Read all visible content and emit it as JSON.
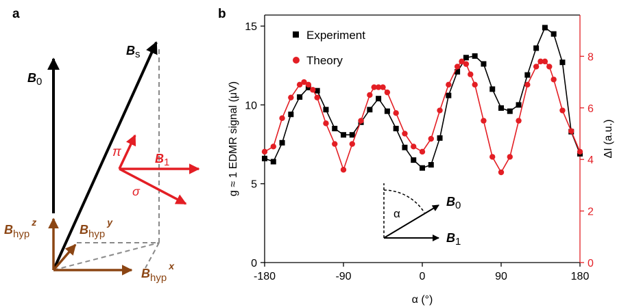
{
  "panel_a": {
    "label": "a",
    "vectors": {
      "B0": {
        "main": "B",
        "sub": "0"
      },
      "Bs": {
        "main": "B",
        "sub": "s"
      },
      "B1": {
        "main": "B",
        "sub": "1"
      },
      "pi": "π",
      "sigma": "σ",
      "Bhyp_z": {
        "main": "B",
        "sub": "hyp",
        "sup": "z"
      },
      "Bhyp_y": {
        "main": "B",
        "sub": "hyp",
        "sup": "y"
      },
      "Bhyp_x": {
        "main": "B",
        "sub": "hyp",
        "sup": "x"
      }
    },
    "colors": {
      "black": "#000000",
      "red": "#e31e24",
      "brown": "#8b4513",
      "dashed": "#888888"
    }
  },
  "panel_b": {
    "label": "b",
    "inset": {
      "alpha": "α",
      "B0": {
        "main": "B",
        "sub": "0"
      },
      "B1": {
        "main": "B",
        "sub": "1"
      }
    }
  },
  "chart_data": {
    "type": "line",
    "xlabel": "α (°)",
    "ylabel": "g ≈ 1 EDMR signal (μV)",
    "y2label": "ΔI (a.u.)",
    "xlim": [
      -180,
      180
    ],
    "ylim": [
      0,
      15.7
    ],
    "y2lim": [
      0,
      9.6
    ],
    "xticks": [
      "-180",
      "-90",
      "0",
      "90",
      "180"
    ],
    "xtick_values": [
      -180,
      -90,
      0,
      90,
      180
    ],
    "yticks": [
      "0",
      "5",
      "10",
      "15"
    ],
    "ytick_values": [
      0,
      5,
      10,
      15
    ],
    "y2ticks": [
      "0",
      "2",
      "4",
      "6",
      "8"
    ],
    "y2tick_values": [
      0,
      2,
      4,
      6,
      8
    ],
    "legend_position": "top-left",
    "series": [
      {
        "name": "Experiment",
        "axis": "left",
        "color": "#000000",
        "marker": "square",
        "x": [
          -180,
          -170,
          -160,
          -150,
          -140,
          -130,
          -120,
          -110,
          -100,
          -90,
          -80,
          -70,
          -60,
          -50,
          -40,
          -30,
          -20,
          -10,
          0,
          10,
          20,
          30,
          40,
          50,
          60,
          70,
          80,
          90,
          100,
          110,
          120,
          130,
          140,
          150,
          160,
          170,
          180
        ],
        "y": [
          6.6,
          6.4,
          7.6,
          9.4,
          10.5,
          11.1,
          10.9,
          9.7,
          8.5,
          8.1,
          8.1,
          8.9,
          9.7,
          10.4,
          9.6,
          8.5,
          7.3,
          6.5,
          6.0,
          6.2,
          7.9,
          10.6,
          12.1,
          13.0,
          13.1,
          12.6,
          11.0,
          9.8,
          9.6,
          10.0,
          11.9,
          13.6,
          14.9,
          14.5,
          12.7,
          8.3,
          6.9
        ]
      },
      {
        "name": "Theory",
        "axis": "right",
        "color": "#e31e24",
        "marker": "circle",
        "x": [
          -180,
          -170,
          -160,
          -150,
          -140,
          -135,
          -130,
          -125,
          -120,
          -110,
          -100,
          -90,
          -80,
          -70,
          -60,
          -55,
          -50,
          -45,
          -40,
          -30,
          -20,
          -10,
          0,
          10,
          20,
          30,
          40,
          45,
          50,
          55,
          60,
          70,
          80,
          90,
          100,
          110,
          120,
          130,
          135,
          140,
          145,
          150,
          160,
          170,
          180
        ],
        "y": [
          4.3,
          4.5,
          5.6,
          6.4,
          6.9,
          7.0,
          6.9,
          6.7,
          6.4,
          5.4,
          4.6,
          3.6,
          4.6,
          5.5,
          6.5,
          6.8,
          6.8,
          6.8,
          6.6,
          5.8,
          5.0,
          4.5,
          4.3,
          4.8,
          5.9,
          6.9,
          7.6,
          7.8,
          7.7,
          7.3,
          6.9,
          5.5,
          4.1,
          3.5,
          4.1,
          5.5,
          6.9,
          7.6,
          7.8,
          7.8,
          7.6,
          7.1,
          5.9,
          5.1,
          4.3
        ]
      }
    ]
  }
}
